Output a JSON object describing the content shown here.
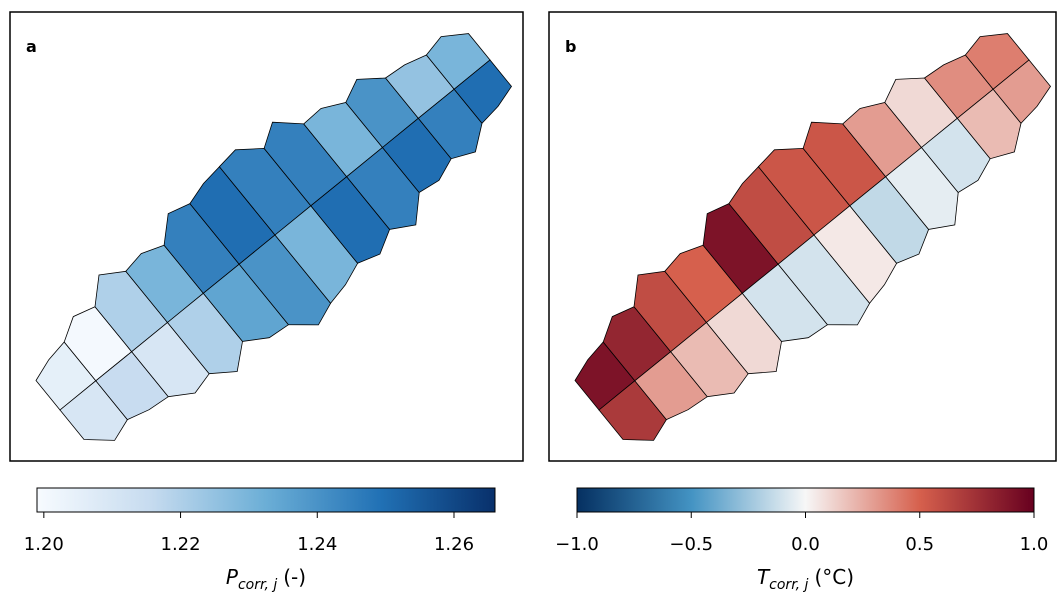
{
  "panels": [
    {
      "label": "a",
      "values": [
        1.205,
        1.21,
        1.2,
        1.215,
        1.22,
        1.21,
        1.23,
        1.22,
        1.245,
        1.235,
        1.25,
        1.24,
        1.245,
        1.23,
        1.245,
        1.25,
        1.23,
        1.245,
        1.24,
        1.25,
        1.225,
        1.245,
        1.23,
        1.25
      ],
      "colorbar": {
        "symbol": "P",
        "subscript": "corr, j",
        "unit": "(-)",
        "colormap": "Blues",
        "clim": [
          1.199,
          1.266
        ],
        "ticks": [
          {
            "value": 1.2,
            "label": "1.20"
          },
          {
            "value": 1.22,
            "label": "1.22"
          },
          {
            "value": 1.24,
            "label": "1.24"
          },
          {
            "value": 1.26,
            "label": "1.26"
          }
        ]
      }
    },
    {
      "label": "b",
      "values": [
        0.9,
        0.7,
        0.8,
        0.3,
        0.6,
        0.2,
        0.5,
        0.1,
        0.9,
        -0.1,
        0.6,
        -0.1,
        0.55,
        0.05,
        0.55,
        -0.15,
        0.3,
        -0.05,
        0.1,
        -0.1,
        0.35,
        0.2,
        0.4,
        0.3
      ],
      "colorbar": {
        "symbol": "T",
        "subscript": "corr, j",
        "unit": "(°C)",
        "colormap": "RdBu_r",
        "clim": [
          -1,
          1
        ],
        "ticks": [
          {
            "value": -1,
            "label": "−1.0"
          },
          {
            "value": -0.5,
            "label": "−0.5"
          },
          {
            "value": 0,
            "label": "0.0"
          },
          {
            "value": 0.5,
            "label": "0.5"
          },
          {
            "value": 1,
            "label": "1.0"
          }
        ]
      }
    }
  ]
}
